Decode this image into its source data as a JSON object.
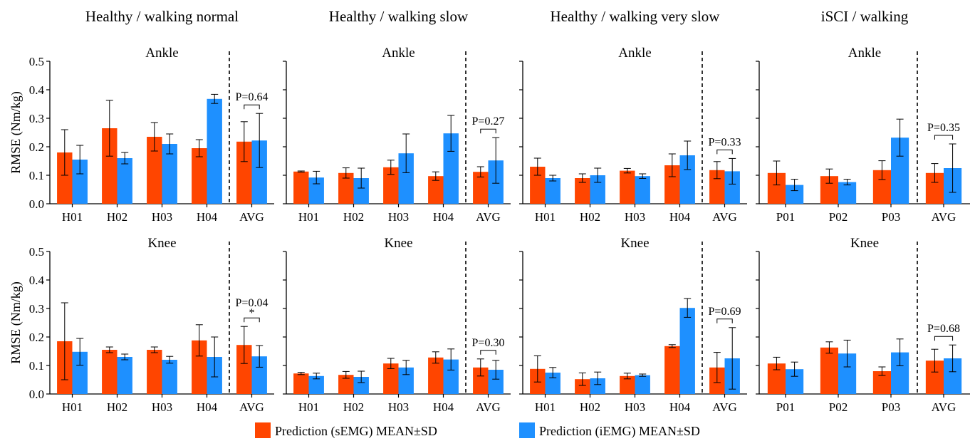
{
  "colors": {
    "semg": "#ff4500",
    "iemg": "#1e90ff"
  },
  "legend": {
    "semg_label": "Prediction (sEMG) MEAN±SD",
    "iemg_label": "Prediction (iEMG) MEAN±SD"
  },
  "chart_data": [
    {
      "type": "bar",
      "column_title": "Healthy / walking normal",
      "title": "Ankle",
      "ylabel": "RMSE (Nm/kg)",
      "ylim": [
        0,
        0.5
      ],
      "yticks": [
        "0.0",
        "0.1",
        "0.2",
        "0.3",
        "0.4",
        "0.5"
      ],
      "categories": [
        "H01",
        "H02",
        "H03",
        "H04",
        "AVG"
      ],
      "series": [
        {
          "name": "Prediction (sEMG) MEAN±SD",
          "values": [
            0.18,
            0.265,
            0.235,
            0.195,
            0.218
          ],
          "sd": [
            0.08,
            0.098,
            0.05,
            0.03,
            0.07
          ]
        },
        {
          "name": "Prediction (iEMG) MEAN±SD",
          "values": [
            0.155,
            0.16,
            0.21,
            0.368,
            0.222
          ],
          "sd": [
            0.05,
            0.02,
            0.035,
            0.016,
            0.095
          ]
        }
      ],
      "annotation": {
        "p": "P=0.64",
        "star": ""
      }
    },
    {
      "type": "bar",
      "column_title": "Healthy / walking slow",
      "title": "Ankle",
      "ylabel": "",
      "ylim": [
        0,
        0.5
      ],
      "yticks": [
        "0.0",
        "0.1",
        "0.2",
        "0.3",
        "0.4",
        "0.5"
      ],
      "categories": [
        "H01",
        "H02",
        "H03",
        "H04",
        "AVG"
      ],
      "series": [
        {
          "name": "Prediction (sEMG) MEAN±SD",
          "values": [
            0.113,
            0.108,
            0.128,
            0.097,
            0.112
          ],
          "sd": [
            0.002,
            0.018,
            0.025,
            0.015,
            0.018
          ]
        },
        {
          "name": "Prediction (iEMG) MEAN±SD",
          "values": [
            0.092,
            0.09,
            0.177,
            0.247,
            0.152
          ],
          "sd": [
            0.022,
            0.035,
            0.068,
            0.063,
            0.08
          ]
        }
      ],
      "annotation": {
        "p": "P=0.27",
        "star": ""
      }
    },
    {
      "type": "bar",
      "column_title": "Healthy / walking very slow",
      "title": "Ankle",
      "ylabel": "",
      "ylim": [
        0,
        0.5
      ],
      "yticks": [
        "0.0",
        "0.1",
        "0.2",
        "0.3",
        "0.4",
        "0.5"
      ],
      "categories": [
        "H01",
        "H02",
        "H03",
        "H04",
        "AVG"
      ],
      "series": [
        {
          "name": "Prediction (sEMG) MEAN±SD",
          "values": [
            0.13,
            0.09,
            0.116,
            0.135,
            0.118
          ],
          "sd": [
            0.03,
            0.015,
            0.008,
            0.04,
            0.03
          ]
        },
        {
          "name": "Prediction (iEMG) MEAN±SD",
          "values": [
            0.09,
            0.1,
            0.097,
            0.17,
            0.114
          ],
          "sd": [
            0.01,
            0.025,
            0.008,
            0.05,
            0.045
          ]
        }
      ],
      "annotation": {
        "p": "P=0.33",
        "star": ""
      }
    },
    {
      "type": "bar",
      "column_title": "iSCI / walking",
      "title": "Ankle",
      "ylabel": "",
      "ylim": [
        0,
        0.5
      ],
      "yticks": [
        "0.0",
        "0.1",
        "0.2",
        "0.3",
        "0.4",
        "0.5"
      ],
      "categories": [
        "P01",
        "P02",
        "P03",
        "AVG"
      ],
      "series": [
        {
          "name": "Prediction (sEMG) MEAN±SD",
          "values": [
            0.108,
            0.097,
            0.118,
            0.108
          ],
          "sd": [
            0.042,
            0.025,
            0.033,
            0.033
          ]
        },
        {
          "name": "Prediction (iEMG) MEAN±SD",
          "values": [
            0.066,
            0.076,
            0.232,
            0.125
          ],
          "sd": [
            0.02,
            0.01,
            0.065,
            0.085
          ]
        }
      ],
      "annotation": {
        "p": "P=0.35",
        "star": ""
      }
    },
    {
      "type": "bar",
      "column_title": "",
      "title": "Knee",
      "ylabel": "RMSE (Nm/kg)",
      "ylim": [
        0,
        0.5
      ],
      "yticks": [
        "0.0",
        "0.1",
        "0.2",
        "0.3",
        "0.4",
        "0.5"
      ],
      "categories": [
        "H01",
        "H02",
        "H03",
        "H04",
        "AVG"
      ],
      "series": [
        {
          "name": "Prediction (sEMG) MEAN±SD",
          "values": [
            0.185,
            0.155,
            0.155,
            0.188,
            0.172
          ],
          "sd": [
            0.135,
            0.01,
            0.01,
            0.055,
            0.065
          ]
        },
        {
          "name": "Prediction (iEMG) MEAN±SD",
          "values": [
            0.148,
            0.13,
            0.12,
            0.13,
            0.132
          ],
          "sd": [
            0.047,
            0.01,
            0.012,
            0.07,
            0.038
          ]
        }
      ],
      "annotation": {
        "p": "P=0.04",
        "star": "*"
      }
    },
    {
      "type": "bar",
      "column_title": "",
      "title": "Knee",
      "ylabel": "",
      "ylim": [
        0,
        0.5
      ],
      "yticks": [
        "0.0",
        "0.1",
        "0.2",
        "0.3",
        "0.4",
        "0.5"
      ],
      "categories": [
        "H01",
        "H02",
        "H03",
        "H04",
        "AVG"
      ],
      "series": [
        {
          "name": "Prediction (sEMG) MEAN±SD",
          "values": [
            0.072,
            0.067,
            0.107,
            0.128,
            0.093
          ],
          "sd": [
            0.004,
            0.012,
            0.018,
            0.02,
            0.03
          ]
        },
        {
          "name": "Prediction (iEMG) MEAN±SD",
          "values": [
            0.063,
            0.06,
            0.093,
            0.121,
            0.085
          ],
          "sd": [
            0.01,
            0.02,
            0.025,
            0.037,
            0.033
          ]
        }
      ],
      "annotation": {
        "p": "P=0.30",
        "star": ""
      }
    },
    {
      "type": "bar",
      "column_title": "",
      "title": "Knee",
      "ylabel": "",
      "ylim": [
        0,
        0.5
      ],
      "yticks": [
        "0.0",
        "0.1",
        "0.2",
        "0.3",
        "0.4",
        "0.5"
      ],
      "categories": [
        "H01",
        "H02",
        "H03",
        "H04",
        "AVG"
      ],
      "series": [
        {
          "name": "Prediction (sEMG) MEAN±SD",
          "values": [
            0.088,
            0.052,
            0.063,
            0.168,
            0.093
          ],
          "sd": [
            0.046,
            0.022,
            0.01,
            0.005,
            0.053
          ]
        },
        {
          "name": "Prediction (iEMG) MEAN±SD",
          "values": [
            0.075,
            0.055,
            0.066,
            0.302,
            0.125
          ],
          "sd": [
            0.018,
            0.022,
            0.004,
            0.033,
            0.108
          ]
        }
      ],
      "annotation": {
        "p": "P=0.69",
        "star": ""
      }
    },
    {
      "type": "bar",
      "column_title": "",
      "title": "Knee",
      "ylabel": "",
      "ylim": [
        0,
        0.5
      ],
      "yticks": [
        "0.0",
        "0.1",
        "0.2",
        "0.3",
        "0.4",
        "0.5"
      ],
      "categories": [
        "P01",
        "P02",
        "P03",
        "AVG"
      ],
      "series": [
        {
          "name": "Prediction (sEMG) MEAN±SD",
          "values": [
            0.107,
            0.163,
            0.08,
            0.117
          ],
          "sd": [
            0.022,
            0.02,
            0.015,
            0.04
          ]
        },
        {
          "name": "Prediction (iEMG) MEAN±SD",
          "values": [
            0.087,
            0.142,
            0.146,
            0.125
          ],
          "sd": [
            0.025,
            0.047,
            0.047,
            0.047
          ]
        }
      ],
      "annotation": {
        "p": "P=0.68",
        "star": ""
      }
    }
  ]
}
